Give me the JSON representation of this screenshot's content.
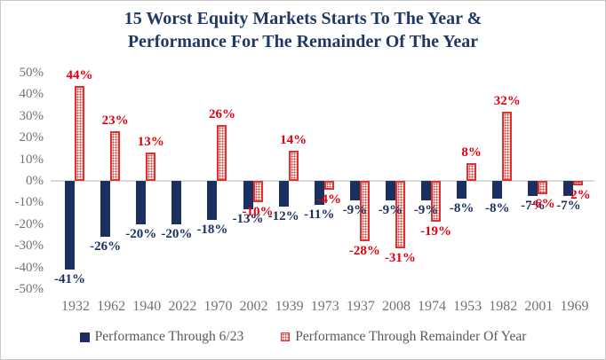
{
  "title": {
    "line1": "15 Worst Equity Markets Starts To The Year &",
    "line2": "Performance For The Remainder Of The Year"
  },
  "chart_data": {
    "type": "bar",
    "title": "15 Worst Equity Markets Starts To The Year & Performance For The Remainder Of The Year",
    "categories": [
      "1932",
      "1962",
      "1940",
      "2022",
      "1970",
      "2002",
      "1939",
      "1973",
      "1937",
      "2008",
      "1974",
      "1953",
      "1982",
      "2001",
      "1969"
    ],
    "series": [
      {
        "name": "Performance Through 6/23",
        "color": "#1b3060",
        "swatch": "navy-solid",
        "values": [
          -41,
          -26,
          -20,
          -20,
          -18,
          -13,
          -12,
          -11,
          -9,
          -9,
          -9,
          -8,
          -8,
          -7,
          -7
        ],
        "labels": [
          "-41%",
          "-26%",
          "-20%",
          "-20%",
          "-18%",
          "-13%",
          "-12%",
          "-11%",
          "-9%",
          "-9%",
          "-9%",
          "-8%",
          "-8%",
          "-7%",
          "-7%"
        ]
      },
      {
        "name": "Performance Through Remainder Of Year",
        "color": "#e2000f",
        "swatch": "red-dotted-pattern",
        "values": [
          44,
          23,
          13,
          null,
          26,
          -10,
          14,
          -4,
          -28,
          -31,
          -19,
          8,
          32,
          -6,
          -2
        ],
        "labels": [
          "44%",
          "23%",
          "13%",
          null,
          "26%",
          "-10%",
          "14%",
          "-4%",
          "-28%",
          "-31%",
          "-19%",
          "8%",
          "32%",
          "-6%",
          "-2%"
        ]
      }
    ],
    "y_axis": {
      "ticks": [
        "50%",
        "40%",
        "30%",
        "20%",
        "10%",
        "0%",
        "-10%",
        "-20%",
        "-30%",
        "-40%",
        "-50%"
      ],
      "tick_values": [
        50,
        40,
        30,
        20,
        10,
        0,
        -10,
        -20,
        -30,
        -40,
        -50
      ],
      "ylim": [
        -50,
        50
      ]
    },
    "xlabel": "",
    "ylabel": "",
    "gridlines": "zero-line-only",
    "legend_position": "bottom",
    "data_labels": "outside-end"
  },
  "colors": {
    "title_text": "#1f3864",
    "navy_bar": "#1b3060",
    "red_accent": "#e2000f",
    "red_bar_border": "#e3312d",
    "axis_text": "#737373",
    "legend_text": "#595959",
    "zero_line": "#d9d9d9",
    "background": "#ffffff"
  }
}
